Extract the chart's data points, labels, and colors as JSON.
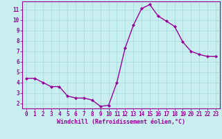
{
  "x": [
    0,
    1,
    2,
    3,
    4,
    5,
    6,
    7,
    8,
    9,
    10,
    11,
    12,
    13,
    14,
    15,
    16,
    17,
    18,
    19,
    20,
    21,
    22,
    23
  ],
  "y": [
    4.4,
    4.4,
    4.0,
    3.6,
    3.6,
    2.7,
    2.5,
    2.5,
    2.3,
    1.7,
    1.8,
    4.0,
    7.3,
    9.5,
    11.1,
    11.5,
    10.4,
    9.9,
    9.4,
    7.9,
    7.0,
    6.7,
    6.5,
    6.5
  ],
  "line_color": "#990099",
  "marker": "D",
  "marker_size": 2.0,
  "line_width": 1.0,
  "xlabel": "Windchill (Refroidissement éolien,°C)",
  "xlabel_color": "#990099",
  "xlim": [
    -0.5,
    23.5
  ],
  "ylim": [
    1.5,
    11.8
  ],
  "yticks": [
    2,
    3,
    4,
    5,
    6,
    7,
    8,
    9,
    10,
    11
  ],
  "xticks": [
    0,
    1,
    2,
    3,
    4,
    5,
    6,
    7,
    8,
    9,
    10,
    11,
    12,
    13,
    14,
    15,
    16,
    17,
    18,
    19,
    20,
    21,
    22,
    23
  ],
  "background_color": "#c8eef0",
  "grid_color": "#aadddd",
  "tick_color": "#990099",
  "axis_color": "#990099",
  "tick_fontsize": 5.5,
  "xlabel_fontsize": 6.0
}
